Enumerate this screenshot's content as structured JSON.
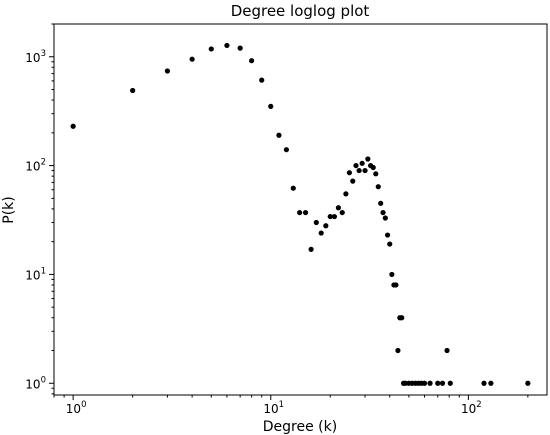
{
  "chart_data": {
    "type": "scatter",
    "title": "Degree loglog plot",
    "xlabel": "Degree (k)",
    "ylabel": "P(k)",
    "xscale": "log",
    "yscale": "log",
    "xlim": [
      0.8,
      250
    ],
    "ylim": [
      0.78,
      2000
    ],
    "grid": false,
    "marker_color": "#000000",
    "x_ticks": [
      {
        "base": "10",
        "exp": "0",
        "value": 1
      },
      {
        "base": "10",
        "exp": "1",
        "value": 10
      },
      {
        "base": "10",
        "exp": "2",
        "value": 100
      }
    ],
    "y_ticks": [
      {
        "base": "10",
        "exp": "0",
        "value": 1
      },
      {
        "base": "10",
        "exp": "1",
        "value": 10
      },
      {
        "base": "10",
        "exp": "2",
        "value": 100
      },
      {
        "base": "10",
        "exp": "3",
        "value": 1000
      }
    ],
    "points": [
      [
        1,
        230
      ],
      [
        2,
        490
      ],
      [
        3,
        740
      ],
      [
        4,
        950
      ],
      [
        5,
        1180
      ],
      [
        6,
        1270
      ],
      [
        7,
        1200
      ],
      [
        8,
        920
      ],
      [
        9,
        610
      ],
      [
        10,
        350
      ],
      [
        11,
        190
      ],
      [
        12,
        140
      ],
      [
        13,
        62
      ],
      [
        14,
        37
      ],
      [
        15,
        37
      ],
      [
        16,
        17
      ],
      [
        17,
        30
      ],
      [
        18,
        24
      ],
      [
        19,
        28
      ],
      [
        20,
        34
      ],
      [
        21,
        34
      ],
      [
        22,
        41
      ],
      [
        23,
        37
      ],
      [
        24,
        55
      ],
      [
        25,
        86
      ],
      [
        26,
        72
      ],
      [
        27,
        100
      ],
      [
        28,
        90
      ],
      [
        29,
        105
      ],
      [
        30,
        90
      ],
      [
        31,
        115
      ],
      [
        32,
        100
      ],
      [
        33,
        96
      ],
      [
        34,
        84
      ],
      [
        35,
        64
      ],
      [
        36,
        45
      ],
      [
        37,
        37
      ],
      [
        38,
        33
      ],
      [
        39,
        23
      ],
      [
        40,
        19
      ],
      [
        41,
        10
      ],
      [
        42,
        8
      ],
      [
        43,
        8
      ],
      [
        44,
        2
      ],
      [
        45,
        4
      ],
      [
        46,
        4
      ],
      [
        47,
        1
      ],
      [
        48,
        1
      ],
      [
        50,
        1
      ],
      [
        52,
        1
      ],
      [
        54,
        1
      ],
      [
        56,
        1
      ],
      [
        58,
        1
      ],
      [
        60,
        1
      ],
      [
        64,
        1
      ],
      [
        70,
        1
      ],
      [
        74,
        1
      ],
      [
        78,
        2
      ],
      [
        81,
        1
      ],
      [
        120,
        1
      ],
      [
        130,
        1
      ],
      [
        200,
        1
      ]
    ]
  }
}
